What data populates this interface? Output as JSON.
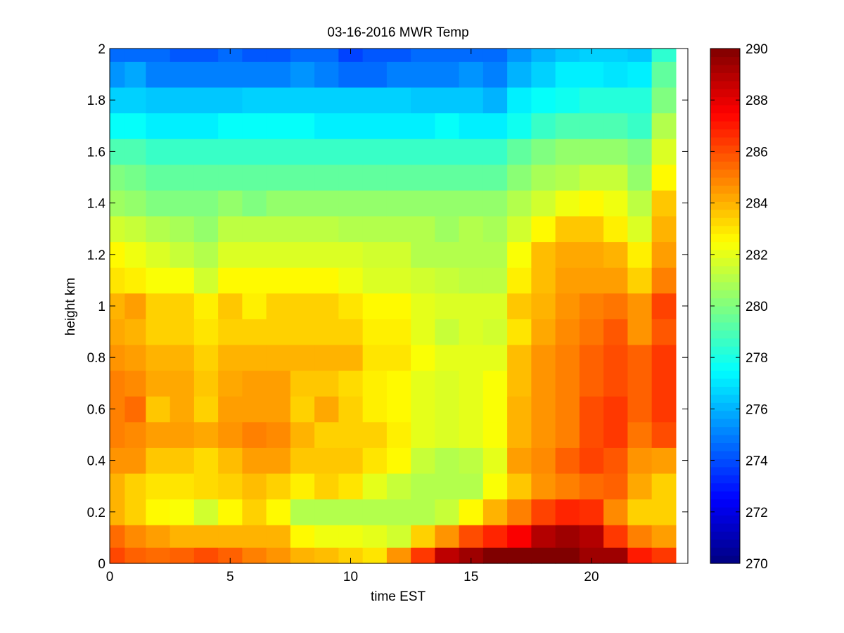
{
  "chart_data": {
    "type": "heatmap",
    "title": "03-16-2016 MWR Temp",
    "xlabel": "time EST",
    "ylabel": "height km",
    "xlim": [
      0,
      24
    ],
    "ylim": [
      0,
      2
    ],
    "xticks": [
      0,
      5,
      10,
      15,
      20
    ],
    "yticks": [
      0,
      0.2,
      0.4,
      0.6,
      0.8,
      1,
      1.2,
      1.4,
      1.6,
      1.8,
      2
    ],
    "x_centers": [
      0.25,
      1.0,
      2.0,
      3.0,
      4.0,
      5.0,
      6.0,
      7.0,
      8.0,
      9.0,
      10.0,
      11.0,
      12.0,
      13.0,
      14.0,
      15.0,
      16.0,
      17.0,
      18.0,
      19.0,
      20.0,
      21.0,
      22.0,
      23.0
    ],
    "y_centers": [
      0.025,
      0.1,
      0.2,
      0.3,
      0.4,
      0.5,
      0.6,
      0.7,
      0.8,
      0.9,
      1.0,
      1.1,
      1.2,
      1.3,
      1.4,
      1.5,
      1.6,
      1.7,
      1.8,
      1.9,
      2.0
    ],
    "z": [
      [
        286.1,
        285.6,
        285.4,
        285.6,
        286.0,
        285.6,
        285.0,
        284.6,
        284.0,
        283.8,
        283.4,
        283.0,
        284.6,
        286.4,
        288.8,
        289.4,
        290.0,
        290.0,
        290.0,
        290.0,
        289.4,
        289.4,
        287.0,
        286.4
      ],
      [
        285.4,
        284.8,
        284.4,
        284.0,
        284.0,
        284.0,
        284.0,
        284.0,
        282.6,
        282.2,
        282.2,
        282.0,
        281.6,
        283.4,
        284.6,
        286.0,
        286.8,
        287.6,
        289.0,
        289.4,
        289.0,
        286.4,
        285.0,
        284.4
      ],
      [
        284.0,
        283.4,
        282.6,
        282.4,
        281.6,
        282.6,
        283.4,
        282.6,
        281.0,
        281.0,
        281.0,
        281.0,
        281.0,
        281.0,
        281.4,
        282.6,
        284.0,
        285.0,
        286.2,
        286.8,
        286.6,
        284.8,
        283.4,
        283.4
      ],
      [
        284.0,
        283.4,
        283.0,
        283.0,
        283.2,
        283.4,
        283.8,
        283.4,
        282.8,
        283.4,
        283.0,
        282.0,
        281.4,
        281.0,
        281.0,
        281.0,
        282.4,
        283.6,
        284.6,
        285.0,
        285.4,
        285.6,
        284.2,
        283.4
      ],
      [
        284.6,
        284.6,
        283.6,
        283.6,
        283.2,
        283.8,
        284.4,
        284.4,
        283.6,
        283.6,
        283.6,
        283.0,
        282.6,
        281.4,
        281.0,
        281.2,
        282.0,
        284.4,
        284.8,
        285.6,
        286.2,
        285.8,
        284.6,
        284.4
      ],
      [
        285.0,
        284.8,
        284.4,
        284.4,
        284.2,
        284.6,
        285.0,
        284.8,
        284.0,
        283.4,
        283.4,
        283.4,
        282.8,
        282.0,
        281.8,
        282.0,
        282.4,
        284.0,
        284.6,
        285.0,
        286.0,
        286.4,
        285.2,
        286.0
      ],
      [
        285.0,
        285.4,
        283.6,
        284.2,
        283.4,
        284.4,
        284.4,
        284.4,
        283.4,
        284.2,
        283.4,
        282.8,
        282.6,
        282.0,
        281.8,
        282.0,
        282.4,
        284.0,
        284.6,
        285.0,
        286.0,
        286.4,
        285.6,
        286.4
      ],
      [
        285.0,
        284.8,
        284.2,
        284.2,
        283.6,
        284.2,
        284.4,
        284.4,
        283.6,
        283.6,
        283.2,
        282.8,
        282.6,
        282.0,
        281.8,
        282.0,
        282.4,
        283.8,
        284.6,
        285.0,
        285.6,
        286.0,
        285.6,
        286.4
      ],
      [
        284.6,
        284.4,
        284.0,
        284.0,
        283.4,
        284.0,
        284.0,
        284.0,
        284.0,
        284.0,
        284.0,
        283.0,
        283.0,
        282.4,
        282.0,
        282.0,
        282.0,
        283.8,
        284.6,
        285.0,
        285.6,
        286.0,
        285.6,
        286.4
      ],
      [
        284.2,
        284.0,
        283.4,
        283.4,
        283.0,
        283.4,
        283.4,
        283.4,
        283.4,
        283.4,
        283.4,
        282.8,
        282.8,
        282.0,
        281.4,
        281.8,
        281.6,
        283.0,
        284.2,
        284.8,
        285.2,
        285.8,
        284.6,
        285.8
      ],
      [
        284.0,
        284.4,
        283.4,
        283.4,
        282.8,
        283.6,
        282.8,
        283.4,
        283.4,
        283.4,
        283.0,
        282.6,
        282.6,
        282.0,
        281.8,
        281.8,
        281.8,
        283.6,
        284.0,
        284.6,
        285.0,
        285.2,
        284.6,
        286.2
      ],
      [
        283.0,
        282.8,
        282.4,
        282.4,
        281.6,
        282.6,
        282.6,
        282.6,
        282.6,
        282.6,
        282.2,
        281.8,
        281.8,
        281.6,
        281.4,
        281.2,
        281.2,
        282.8,
        283.8,
        284.4,
        284.4,
        284.4,
        283.4,
        285.0
      ],
      [
        282.6,
        282.2,
        281.8,
        281.4,
        281.0,
        281.8,
        281.8,
        281.8,
        281.8,
        281.8,
        281.8,
        281.6,
        281.6,
        281.0,
        281.0,
        281.0,
        281.0,
        282.4,
        283.8,
        284.2,
        284.2,
        284.0,
        282.8,
        284.4
      ],
      [
        281.6,
        281.4,
        281.0,
        280.8,
        280.4,
        281.2,
        281.2,
        281.2,
        281.2,
        281.2,
        281.0,
        281.0,
        281.0,
        281.0,
        280.6,
        281.0,
        280.8,
        281.6,
        282.6,
        283.6,
        283.6,
        282.8,
        281.8,
        284.0
      ],
      [
        280.6,
        280.4,
        280.0,
        280.0,
        280.0,
        280.4,
        280.0,
        280.4,
        280.4,
        280.4,
        280.4,
        280.4,
        280.4,
        280.4,
        280.4,
        280.4,
        280.4,
        281.0,
        281.6,
        282.2,
        282.6,
        282.2,
        281.2,
        283.6
      ],
      [
        280.0,
        279.8,
        279.4,
        279.4,
        279.4,
        279.4,
        279.4,
        279.4,
        279.4,
        279.4,
        279.4,
        279.4,
        279.4,
        279.4,
        279.4,
        279.4,
        279.4,
        280.2,
        280.8,
        281.0,
        281.4,
        281.4,
        280.4,
        282.6
      ],
      [
        279.0,
        279.0,
        278.6,
        278.6,
        278.6,
        278.6,
        278.6,
        278.6,
        278.6,
        278.6,
        278.6,
        278.6,
        278.6,
        278.6,
        278.6,
        278.6,
        278.6,
        279.4,
        280.0,
        280.4,
        280.4,
        280.4,
        280.0,
        281.8
      ],
      [
        277.6,
        277.6,
        277.2,
        277.2,
        277.2,
        277.6,
        277.6,
        277.6,
        277.6,
        277.2,
        277.2,
        277.2,
        277.2,
        277.2,
        277.6,
        277.2,
        277.2,
        277.8,
        278.6,
        279.0,
        279.0,
        279.0,
        278.6,
        281.0
      ],
      [
        276.6,
        276.6,
        276.4,
        276.4,
        276.4,
        276.4,
        276.6,
        276.6,
        276.6,
        276.6,
        276.6,
        276.6,
        276.6,
        276.4,
        276.4,
        276.4,
        276.0,
        277.2,
        277.6,
        277.8,
        278.2,
        278.2,
        278.2,
        280.0
      ],
      [
        275.4,
        275.8,
        275.0,
        275.0,
        275.0,
        275.0,
        275.0,
        275.0,
        275.4,
        275.0,
        274.6,
        274.6,
        275.0,
        275.0,
        275.0,
        275.4,
        275.0,
        276.0,
        276.6,
        277.2,
        277.2,
        277.0,
        277.2,
        279.4
      ],
      [
        274.6,
        274.6,
        274.6,
        274.2,
        274.2,
        274.6,
        274.2,
        274.2,
        274.6,
        274.6,
        273.8,
        274.2,
        274.2,
        274.6,
        274.6,
        274.6,
        274.6,
        275.4,
        276.0,
        276.4,
        276.6,
        276.6,
        276.4,
        278.4
      ]
    ],
    "colorbar": {
      "colormap": "jet",
      "range": [
        270,
        290
      ],
      "ticks": [
        270,
        272,
        274,
        276,
        278,
        280,
        282,
        284,
        286,
        288,
        290
      ]
    }
  }
}
